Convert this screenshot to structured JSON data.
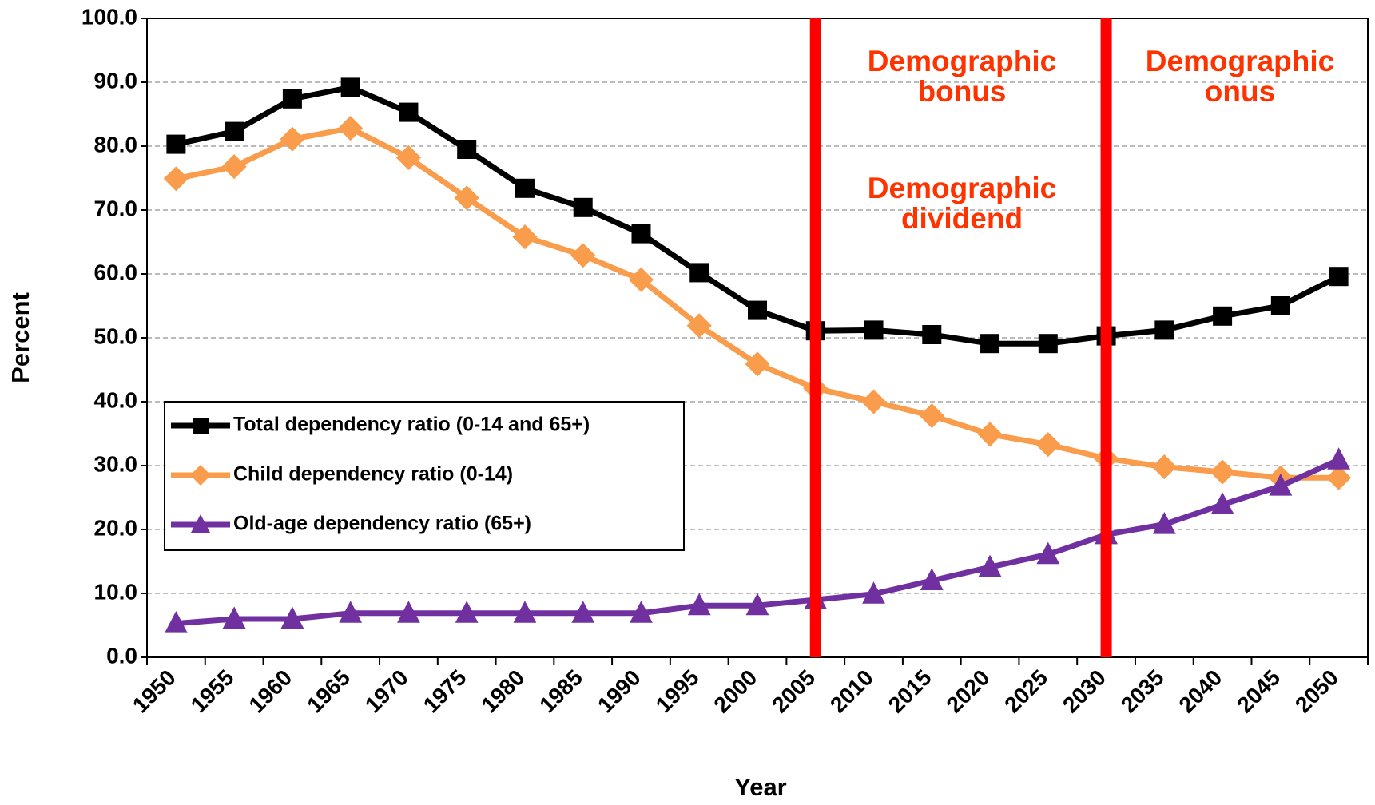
{
  "chart_data": {
    "type": "line",
    "x_label": "Year",
    "y_label": "Percent",
    "categories": [
      "1950",
      "1955",
      "1960",
      "1965",
      "1970",
      "1975",
      "1980",
      "1985",
      "1990",
      "1995",
      "2000",
      "2005",
      "2010",
      "2015",
      "2020",
      "2025",
      "2030",
      "2035",
      "2040",
      "2045",
      "2050"
    ],
    "series": [
      {
        "name": "Total dependency ratio (0-14 and 65+)",
        "color": "#000000",
        "marker": "square",
        "values": [
          80.3,
          82.3,
          87.4,
          89.2,
          85.3,
          79.5,
          73.4,
          70.4,
          66.3,
          60.2,
          54.3,
          51.1,
          51.2,
          50.5,
          49.1,
          49.1,
          50.3,
          51.2,
          53.4,
          55.0,
          59.6
        ]
      },
      {
        "name": "Child dependency ratio (0-14)",
        "color": "#f99d4c",
        "marker": "diamond",
        "values": [
          74.9,
          76.8,
          81.1,
          82.8,
          78.2,
          71.9,
          65.8,
          62.9,
          59.1,
          51.9,
          45.9,
          42.1,
          40.0,
          37.8,
          34.9,
          33.3,
          31.1,
          29.8,
          29.0,
          28.1,
          28.1
        ]
      },
      {
        "name": "Old-age dependency ratio (65+)",
        "color": "#7030a0",
        "marker": "triangle",
        "values": [
          5.3,
          6.0,
          6.0,
          6.9,
          6.9,
          6.9,
          6.9,
          6.9,
          6.9,
          8.1,
          8.1,
          9.0,
          9.9,
          12.0,
          14.1,
          16.1,
          19.2,
          20.8,
          23.9,
          26.8,
          30.9
        ]
      }
    ],
    "ylim": [
      0,
      100
    ],
    "yticks": [
      {
        "value": 0,
        "label": "0.0"
      },
      {
        "value": 10,
        "label": "10.0"
      },
      {
        "value": 20,
        "label": "20.0"
      },
      {
        "value": 30,
        "label": "30.0"
      },
      {
        "value": 40,
        "label": "40.0"
      },
      {
        "value": 50,
        "label": "50.0"
      },
      {
        "value": 60,
        "label": "60.0"
      },
      {
        "value": 70,
        "label": "70.0"
      },
      {
        "value": 80,
        "label": "80.0"
      },
      {
        "value": 90,
        "label": "90.0"
      },
      {
        "value": 100,
        "label": "100.0"
      }
    ],
    "grid": true,
    "legend": "left",
    "vlines": [
      {
        "x": "2005",
        "color": "#ff0000"
      },
      {
        "x": "2030",
        "color": "#ff0000"
      }
    ],
    "annotations": [
      {
        "lines": [
          "Demographic",
          "bonus"
        ]
      },
      {
        "lines": [
          "Demographic",
          "dividend"
        ]
      },
      {
        "lines": [
          "Demographic",
          "onus"
        ]
      }
    ]
  }
}
